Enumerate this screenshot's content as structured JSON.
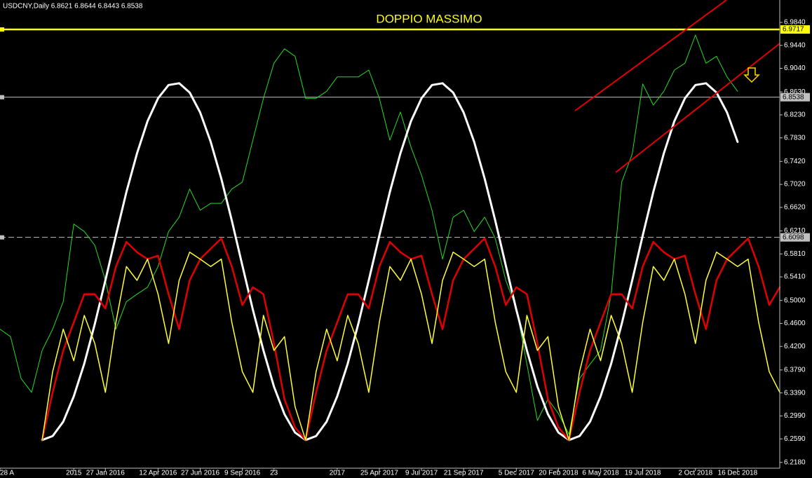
{
  "chart_data": {
    "type": "line",
    "title": "USDCNY,Daily  6.8621 6.8644 6.8443 6.8538",
    "annotation": "DOPPIO MASSIMO",
    "categories": [
      "28 A",
      null,
      null,
      null,
      null,
      null,
      null,
      "2015",
      null,
      null,
      "27 Jan 2016",
      null,
      null,
      null,
      null,
      "12 Apr 2016",
      null,
      null,
      null,
      "27 Jun 2016",
      null,
      null,
      null,
      "9 Sep 2016",
      null,
      null,
      "23",
      null,
      null,
      null,
      null,
      null,
      "2017",
      null,
      null,
      null,
      "25 Apr 2017",
      null,
      null,
      null,
      "9 Jul 2017",
      null,
      null,
      null,
      "21 Sep 2017",
      null,
      null,
      null,
      null,
      "5 Dec 2017",
      null,
      null,
      null,
      "20 Feb 2018",
      null,
      null,
      null,
      "6 May 2018",
      null,
      null,
      null,
      "19 Jul 2018",
      null,
      null,
      null,
      null,
      "2 Oct 2018",
      null,
      null,
      null,
      "16 Dec 2018",
      null,
      null,
      null,
      null
    ],
    "series": [
      {
        "color": "#22dd22",
        "values": [
          6.45,
          6.437,
          6.364,
          6.34,
          6.413,
          6.45,
          6.498,
          6.633,
          6.62,
          6.596,
          6.535,
          6.45,
          6.498,
          6.511,
          6.523,
          6.559,
          6.62,
          6.645,
          6.694,
          6.657,
          6.669,
          6.669,
          6.694,
          6.706,
          6.779,
          6.852,
          6.913,
          6.938,
          6.925,
          6.852,
          6.852,
          6.864,
          6.889,
          6.889,
          6.889,
          6.901,
          6.852,
          6.779,
          6.828,
          6.767,
          6.718,
          6.657,
          6.572,
          6.645,
          6.657,
          6.62,
          6.645,
          6.608,
          6.535,
          6.486,
          6.389,
          6.291,
          6.328,
          6.303,
          6.267,
          6.364,
          6.389,
          6.413,
          6.511,
          6.706,
          6.755,
          6.877,
          6.84,
          6.864,
          6.901,
          6.913,
          6.962,
          6.913,
          6.925,
          6.889,
          6.864,
          null,
          null,
          null,
          null
        ]
      },
      {
        "color": "#ffffff",
        "values": [
          null,
          null,
          null,
          null,
          6.257,
          6.264,
          6.289,
          6.333,
          6.39,
          6.459,
          6.535,
          6.613,
          6.689,
          6.756,
          6.812,
          6.852,
          6.875,
          6.878,
          6.862,
          6.827,
          6.776,
          6.712,
          6.639,
          6.561,
          6.484,
          6.413,
          6.35,
          6.302,
          6.27,
          6.257,
          6.264,
          6.289,
          6.333,
          6.39,
          6.459,
          6.535,
          6.613,
          6.689,
          6.756,
          6.812,
          6.852,
          6.875,
          6.878,
          6.862,
          6.827,
          6.776,
          6.712,
          6.639,
          6.561,
          6.484,
          6.413,
          6.35,
          6.302,
          6.27,
          6.257,
          6.264,
          6.289,
          6.333,
          6.39,
          6.459,
          6.535,
          6.613,
          6.689,
          6.756,
          6.812,
          6.852,
          6.875,
          6.878,
          6.862,
          6.827,
          6.776,
          null,
          null,
          null,
          null
        ]
      },
      {
        "color": "#e00000",
        "values": [
          null,
          null,
          null,
          null,
          6.257,
          6.34,
          6.413,
          6.462,
          6.511,
          6.511,
          6.486,
          6.559,
          6.602,
          6.584,
          6.572,
          6.578,
          6.511,
          6.45,
          6.535,
          6.572,
          6.59,
          6.608,
          6.559,
          6.492,
          6.523,
          6.511,
          6.425,
          6.328,
          6.279,
          6.257,
          6.34,
          6.413,
          6.462,
          6.511,
          6.511,
          6.486,
          6.559,
          6.602,
          6.584,
          6.572,
          6.578,
          6.511,
          6.45,
          6.535,
          6.572,
          6.59,
          6.608,
          6.559,
          6.492,
          6.523,
          6.511,
          6.425,
          6.328,
          6.279,
          6.257,
          6.34,
          6.413,
          6.462,
          6.511,
          6.511,
          6.486,
          6.559,
          6.602,
          6.584,
          6.572,
          6.578,
          6.511,
          6.45,
          6.535,
          6.572,
          6.59,
          6.608,
          6.559,
          6.492,
          6.523
        ]
      },
      {
        "color": "#ffff33",
        "values": [
          null,
          null,
          null,
          null,
          6.257,
          6.376,
          6.45,
          6.395,
          6.474,
          6.425,
          6.34,
          6.462,
          6.559,
          6.535,
          6.572,
          6.511,
          6.425,
          6.535,
          6.584,
          6.572,
          6.559,
          6.572,
          6.462,
          6.376,
          6.34,
          6.474,
          6.413,
          6.437,
          6.315,
          6.257,
          6.376,
          6.45,
          6.395,
          6.474,
          6.425,
          6.34,
          6.462,
          6.559,
          6.535,
          6.572,
          6.511,
          6.425,
          6.535,
          6.584,
          6.572,
          6.559,
          6.572,
          6.462,
          6.376,
          6.34,
          6.474,
          6.413,
          6.437,
          6.315,
          6.257,
          6.376,
          6.45,
          6.395,
          6.474,
          6.425,
          6.34,
          6.462,
          6.559,
          6.535,
          6.572,
          6.511,
          6.425,
          6.535,
          6.584,
          6.572,
          6.559,
          6.572,
          6.462,
          6.376,
          6.34
        ]
      }
    ],
    "hlines": [
      {
        "value": 6.9717,
        "color": "#ffff00",
        "dashed": false
      },
      {
        "value": 6.8538,
        "color": "#c0c0c0",
        "dashed": false
      },
      {
        "value": 6.6098,
        "color": "#c0c0c0",
        "dashed": true
      }
    ],
    "ylim": [
      6.208,
      7.023
    ],
    "yticks": [
      {
        "value": 6.984,
        "label": "6.9840"
      },
      {
        "value": 6.944,
        "label": "6.9440"
      },
      {
        "value": 6.904,
        "label": "6.9040"
      },
      {
        "value": 6.863,
        "label": "6.8630"
      },
      {
        "value": 6.823,
        "label": "6.8230"
      },
      {
        "value": 6.783,
        "label": "6.7830"
      },
      {
        "value": 6.742,
        "label": "6.7420"
      },
      {
        "value": 6.702,
        "label": "6.7020"
      },
      {
        "value": 6.662,
        "label": "6.6620"
      },
      {
        "value": 6.621,
        "label": "6.6210"
      },
      {
        "value": 6.581,
        "label": "6.5810"
      },
      {
        "value": 6.541,
        "label": "6.5410"
      },
      {
        "value": 6.5,
        "label": "6.5000"
      },
      {
        "value": 6.46,
        "label": "6.4600"
      },
      {
        "value": 6.42,
        "label": "6.4200"
      },
      {
        "value": 6.379,
        "label": "6.3790"
      },
      {
        "value": 6.339,
        "label": "6.3390"
      },
      {
        "value": 6.299,
        "label": "6.2990"
      },
      {
        "value": 6.259,
        "label": "6.2590"
      },
      {
        "value": 6.218,
        "label": "6.2180"
      }
    ],
    "grid": false
  }
}
